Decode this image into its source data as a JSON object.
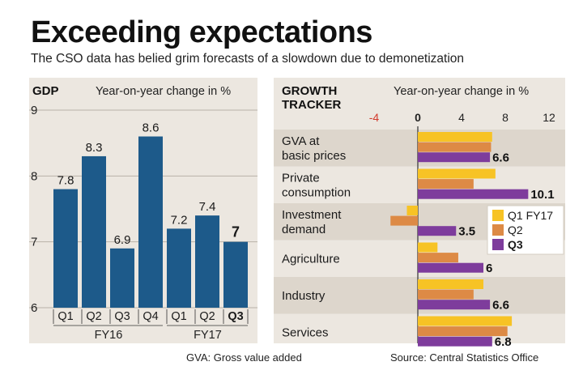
{
  "header": {
    "title": "Exceeding expectations",
    "subtitle": "The CSO data has belied grim forecasts of a slowdown due to demonetization"
  },
  "footer": {
    "note": "GVA: Gross value added",
    "source": "Source: Central Statistics Office"
  },
  "colors": {
    "gdp_bar": "#1d5a8a",
    "q1": "#f7c325",
    "q2": "#dd8a45",
    "q3": "#7e3c9c",
    "panel_bg": "#ece7e0",
    "band": "#ddd6cc"
  },
  "chart_data": [
    {
      "type": "bar",
      "title": "GDP",
      "ylabel": "Year-on-year change in %",
      "ylim": [
        6,
        9
      ],
      "yticks": [
        "9",
        "8",
        "7",
        "6"
      ],
      "quarters": [
        "Q1",
        "Q2",
        "Q3",
        "Q4",
        "Q1",
        "Q2",
        "Q3"
      ],
      "groups": [
        "FY16",
        "FY17"
      ],
      "values": [
        7.8,
        8.3,
        6.9,
        8.6,
        7.2,
        7.4,
        7
      ],
      "value_labels": [
        "7.8",
        "8.3",
        "6.9",
        "8.6",
        "7.2",
        "7.4",
        "7"
      ]
    },
    {
      "type": "bar",
      "orientation": "horizontal",
      "title_lines": [
        "GROWTH",
        "TRACKER"
      ],
      "xlabel": "Year-on-year change in %",
      "xlim": [
        -4,
        12
      ],
      "xticks": [
        "-4",
        "0",
        "4",
        "8",
        "12"
      ],
      "categories": [
        [
          "GVA at",
          "basic prices"
        ],
        [
          "Private",
          "consumption"
        ],
        [
          "Investment",
          "demand"
        ],
        [
          "Agriculture"
        ],
        [
          "Industry"
        ],
        [
          "Services"
        ]
      ],
      "series": [
        {
          "name": "Q1 FY17",
          "values": [
            6.8,
            7.1,
            -1.0,
            1.8,
            6.0,
            8.6
          ]
        },
        {
          "name": "Q2",
          "values": [
            6.7,
            5.1,
            -2.5,
            3.7,
            5.1,
            8.2
          ]
        },
        {
          "name": "Q3",
          "values": [
            6.6,
            10.1,
            3.5,
            6,
            6.6,
            6.8
          ]
        }
      ],
      "q3_labels": [
        "6.6",
        "10.1",
        "3.5",
        "6",
        "6.6",
        "6.8"
      ]
    }
  ]
}
